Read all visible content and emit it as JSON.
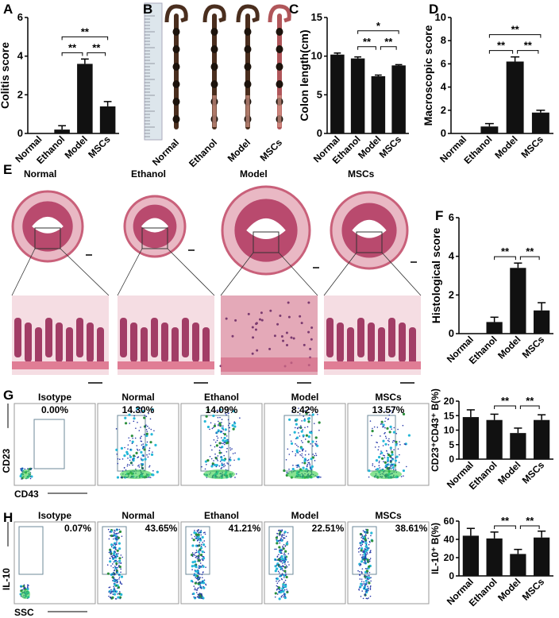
{
  "panel_letters": [
    "A",
    "B",
    "C",
    "D",
    "E",
    "F",
    "G",
    "H"
  ],
  "groups": [
    "Normal",
    "Ethanol",
    "Model",
    "MSCs"
  ],
  "photo_labels": [
    "Normal",
    "Ethanol",
    "Model",
    "MSCs"
  ],
  "histology_labels": [
    "Normal",
    "Ethanol",
    "Model",
    "MSCs"
  ],
  "flow_g": {
    "y_axis": "CD23",
    "x_axis": "CD43",
    "panels": [
      {
        "label": "Isotype",
        "percent": "0.00%"
      },
      {
        "label": "Normal",
        "percent": "14.30%"
      },
      {
        "label": "Ethanol",
        "percent": "14.09%"
      },
      {
        "label": "Model",
        "percent": "8.42%"
      },
      {
        "label": "MSCs",
        "percent": "13.57%"
      }
    ]
  },
  "flow_h": {
    "y_axis": "IL-10",
    "x_axis": "SSC",
    "panels": [
      {
        "label": "Isotype",
        "percent": "0.07%"
      },
      {
        "label": "Normal",
        "percent": "43.65%"
      },
      {
        "label": "Ethanol",
        "percent": "41.21%"
      },
      {
        "label": "Model",
        "percent": "22.51%"
      },
      {
        "label": "MSCs",
        "percent": "38.61%"
      }
    ]
  },
  "colors": {
    "bar": "#111111",
    "tissue": "#c9607a",
    "background": "#ffffff"
  },
  "chart_data": [
    {
      "id": "A",
      "type": "bar",
      "ylabel": "Colitis score",
      "categories": [
        "Normal",
        "Ethanol",
        "Model",
        "MSCs"
      ],
      "values": [
        0,
        0.2,
        3.6,
        1.4
      ],
      "errors": [
        0,
        0.2,
        0.25,
        0.25
      ],
      "ylim": [
        0,
        6
      ],
      "yticks": [
        0,
        2,
        4,
        6
      ],
      "significance": [
        {
          "from": "Ethanol",
          "to": "Model",
          "label": "**"
        },
        {
          "from": "Model",
          "to": "MSCs",
          "label": "**"
        },
        {
          "from": "Ethanol",
          "to": "MSCs",
          "label": "**"
        }
      ]
    },
    {
      "id": "C",
      "type": "bar",
      "ylabel": "Colon length(cm)",
      "categories": [
        "Normal",
        "Ethanol",
        "Model",
        "MSCs"
      ],
      "values": [
        10.2,
        9.7,
        7.4,
        8.8
      ],
      "errors": [
        0.2,
        0.2,
        0.15,
        0.1
      ],
      "ylim": [
        0,
        15
      ],
      "yticks": [
        0,
        5,
        10,
        15
      ],
      "significance": [
        {
          "from": "Ethanol",
          "to": "Model",
          "label": "**"
        },
        {
          "from": "Model",
          "to": "MSCs",
          "label": "**"
        },
        {
          "from": "Ethanol",
          "to": "MSCs",
          "label": "*"
        }
      ]
    },
    {
      "id": "D",
      "type": "bar",
      "ylabel": "Macroscopic score",
      "categories": [
        "Normal",
        "Ethanol",
        "Model",
        "MSCs"
      ],
      "values": [
        0,
        0.6,
        6.2,
        1.8
      ],
      "errors": [
        0,
        0.25,
        0.4,
        0.2
      ],
      "ylim": [
        0,
        10
      ],
      "yticks": [
        0,
        2,
        4,
        6,
        8,
        10
      ],
      "significance": [
        {
          "from": "Ethanol",
          "to": "Model",
          "label": "**"
        },
        {
          "from": "Model",
          "to": "MSCs",
          "label": "**"
        },
        {
          "from": "Ethanol",
          "to": "MSCs",
          "label": "**"
        }
      ]
    },
    {
      "id": "F",
      "type": "bar",
      "ylabel": "Histological score",
      "categories": [
        "Normal",
        "Ethanol",
        "Model",
        "MSCs"
      ],
      "values": [
        0,
        0.6,
        3.4,
        1.2
      ],
      "errors": [
        0,
        0.25,
        0.25,
        0.4
      ],
      "ylim": [
        0,
        6
      ],
      "yticks": [
        0,
        2,
        4,
        6
      ],
      "significance": [
        {
          "from": "Ethanol",
          "to": "Model",
          "label": "**"
        },
        {
          "from": "Model",
          "to": "MSCs",
          "label": "**"
        }
      ]
    },
    {
      "id": "G",
      "type": "bar",
      "ylabel": "CD23⁺CD43⁺ B(%)",
      "categories": [
        "Normal",
        "Ethanol",
        "Model",
        "MSCs"
      ],
      "values": [
        14.5,
        13.5,
        9,
        13.5
      ],
      "errors": [
        2.5,
        2,
        1.7,
        1.8
      ],
      "ylim": [
        0,
        20
      ],
      "yticks": [
        0,
        5,
        10,
        15,
        20
      ],
      "significance": [
        {
          "from": "Ethanol",
          "to": "Model",
          "label": "**"
        },
        {
          "from": "Model",
          "to": "MSCs",
          "label": "**"
        }
      ]
    },
    {
      "id": "H",
      "type": "bar",
      "ylabel": "IL-10⁺ B(%)",
      "categories": [
        "Normal",
        "Ethanol",
        "Model",
        "MSCs"
      ],
      "values": [
        44,
        41,
        24,
        42
      ],
      "errors": [
        8,
        7,
        5,
        7
      ],
      "ylim": [
        0,
        60
      ],
      "yticks": [
        0,
        20,
        40,
        60
      ],
      "significance": [
        {
          "from": "Ethanol",
          "to": "Model",
          "label": "**"
        },
        {
          "from": "Model",
          "to": "MSCs",
          "label": "**"
        }
      ]
    }
  ]
}
